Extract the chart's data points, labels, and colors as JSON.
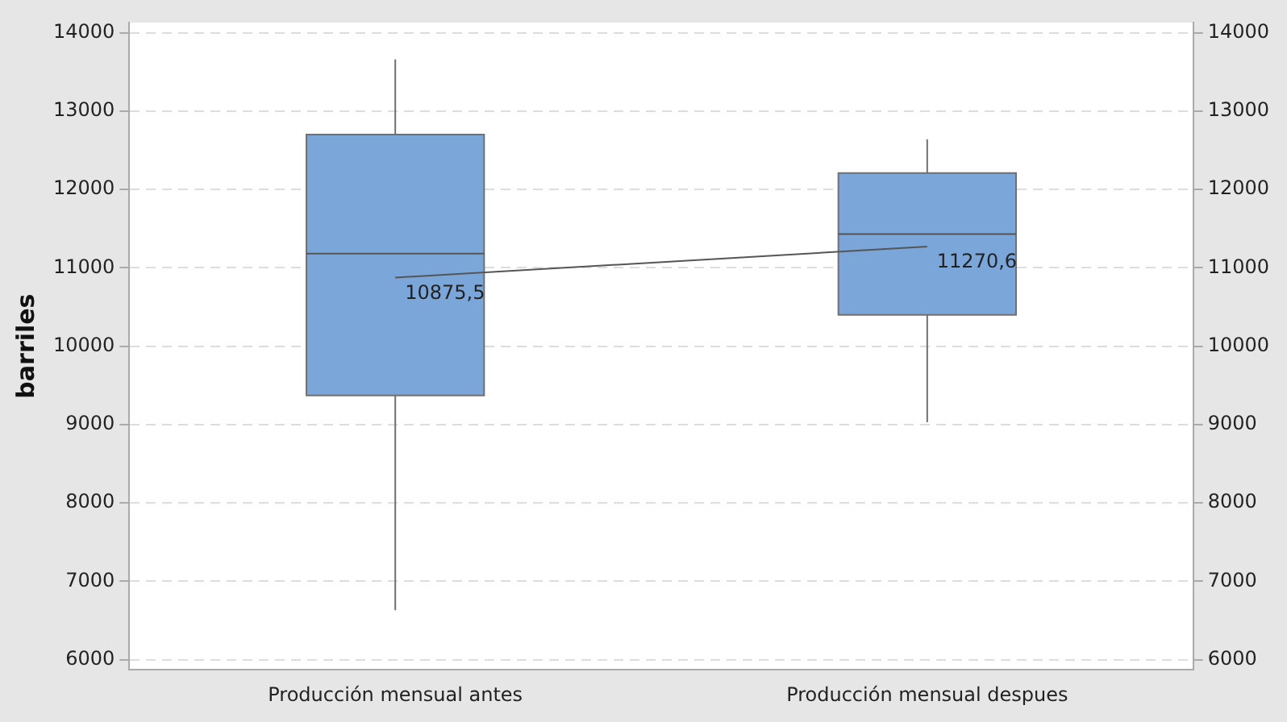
{
  "chart_data": {
    "type": "box",
    "ylabel": "barriles",
    "categories": [
      "Producción mensual antes",
      "Producción mensual despues"
    ],
    "series": [
      {
        "color": "#7ba6da",
        "boxes": [
          {
            "low": 6630,
            "q1": 9370,
            "median": 11180,
            "q3": 12700,
            "high": 13660
          },
          {
            "low": 9030,
            "q1": 10400,
            "median": 11430,
            "q3": 12210,
            "high": 12640
          }
        ]
      },
      {
        "type": "line",
        "color": "#555555",
        "values": [
          10875.5,
          11270.6
        ],
        "value_labels": [
          "10875,5",
          "11270,6"
        ]
      }
    ],
    "marker": "none",
    "ylim": [
      5870,
      14130
    ],
    "yticks": [
      6000,
      7000,
      8000,
      9000,
      10000,
      11000,
      12000,
      13000,
      14000
    ],
    "y2lim": [
      5870,
      14130
    ],
    "y2ticks": [
      6000,
      7000,
      8000,
      9000,
      10000,
      11000,
      12000,
      13000,
      14000
    ],
    "grid": "y"
  }
}
